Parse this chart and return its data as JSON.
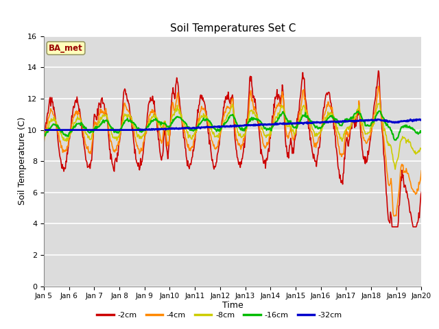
{
  "title": "Soil Temperatures Set C",
  "xlabel": "Time",
  "ylabel": "Soil Temperature (C)",
  "ylim": [
    0,
    16
  ],
  "yticks": [
    0,
    2,
    4,
    6,
    8,
    10,
    12,
    14,
    16
  ],
  "plot_bg_color": "#dcdcdc",
  "fig_bg_color": "#ffffff",
  "label_box_text": "BA_met",
  "legend_labels": [
    "-2cm",
    "-4cm",
    "-8cm",
    "-16cm",
    "-32cm"
  ],
  "line_colors": [
    "#cc0000",
    "#ff8800",
    "#cccc00",
    "#00bb00",
    "#0000cc"
  ],
  "line_widths": [
    1.2,
    1.2,
    1.2,
    1.5,
    2.0
  ],
  "x_tick_labels": [
    "Jan 5",
    "Jan 6",
    "Jan 7",
    "Jan 8",
    "Jan 9",
    "Jan 10",
    "Jan 11",
    "Jan 12",
    "Jan 13",
    "Jan 14",
    "Jan 15",
    "Jan 16",
    "Jan 17",
    "Jan 18",
    "Jan 19",
    "Jan 20"
  ],
  "num_points": 720,
  "days": 15
}
